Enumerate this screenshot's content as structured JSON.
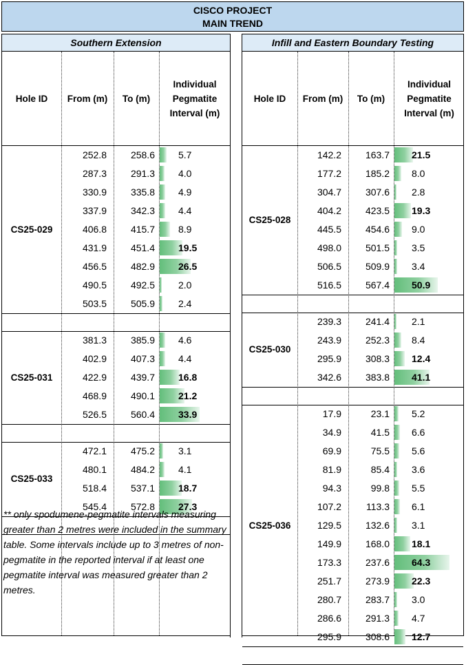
{
  "title": {
    "line1": "CISCO PROJECT",
    "line2": "MAIN TREND"
  },
  "headers": {
    "hole_id": "Hole ID",
    "from": "From (m)",
    "to": "To (m)",
    "interval": "Individual\nPegmatite\nInterval (m)"
  },
  "left": {
    "section_title": "Southern Extension",
    "groups": [
      {
        "hole": "CS25-029",
        "rows": [
          {
            "from": "252.8",
            "to": "258.6",
            "interval": "5.7",
            "value": 5.7,
            "bold": false
          },
          {
            "from": "287.3",
            "to": "291.3",
            "interval": "4.0",
            "value": 4.0,
            "bold": false
          },
          {
            "from": "330.9",
            "to": "335.8",
            "interval": "4.9",
            "value": 4.9,
            "bold": false
          },
          {
            "from": "337.9",
            "to": "342.3",
            "interval": "4.4",
            "value": 4.4,
            "bold": false
          },
          {
            "from": "406.8",
            "to": "415.7",
            "interval": "8.9",
            "value": 8.9,
            "bold": false
          },
          {
            "from": "431.9",
            "to": "451.4",
            "interval": "19.5",
            "value": 19.5,
            "bold": true
          },
          {
            "from": "456.5",
            "to": "482.9",
            "interval": "26.5",
            "value": 26.5,
            "bold": true
          },
          {
            "from": "490.5",
            "to": "492.5",
            "interval": "2.0",
            "value": 2.0,
            "bold": false
          },
          {
            "from": "503.5",
            "to": "505.9",
            "interval": "2.4",
            "value": 2.4,
            "bold": false
          }
        ]
      },
      {
        "hole": "CS25-031",
        "rows": [
          {
            "from": "381.3",
            "to": "385.9",
            "interval": "4.6",
            "value": 4.6,
            "bold": false
          },
          {
            "from": "402.9",
            "to": "407.3",
            "interval": "4.4",
            "value": 4.4,
            "bold": false
          },
          {
            "from": "422.9",
            "to": "439.7",
            "interval": "16.8",
            "value": 16.8,
            "bold": true
          },
          {
            "from": "468.9",
            "to": "490.1",
            "interval": "21.2",
            "value": 21.2,
            "bold": true
          },
          {
            "from": "526.5",
            "to": "560.4",
            "interval": "33.9",
            "value": 33.9,
            "bold": true
          }
        ]
      },
      {
        "hole": "CS25-033",
        "rows": [
          {
            "from": "472.1",
            "to": "475.2",
            "interval": "3.1",
            "value": 3.1,
            "bold": false
          },
          {
            "from": "480.1",
            "to": "484.2",
            "interval": "4.1",
            "value": 4.1,
            "bold": false
          },
          {
            "from": "518.4",
            "to": "537.1",
            "interval": "18.7",
            "value": 18.7,
            "bold": true
          },
          {
            "from": "545.4",
            "to": "572.8",
            "interval": "27.3",
            "value": 27.3,
            "bold": true
          }
        ]
      }
    ],
    "note": "** only spodumene-pegmatite intervals measuring greater than 2 metres were included in the summary table.  Some intervals include up to 3 metres of non-pegmatite in the reported interval if at least one pegmatite interval was measured greater than 2 metres."
  },
  "right": {
    "section_title": "Infill and Eastern Boundary Testing",
    "groups": [
      {
        "hole": "CS25-028",
        "rows": [
          {
            "from": "142.2",
            "to": "163.7",
            "interval": "21.5",
            "value": 21.5,
            "bold": true
          },
          {
            "from": "177.2",
            "to": "185.2",
            "interval": "8.0",
            "value": 8.0,
            "bold": false
          },
          {
            "from": "304.7",
            "to": "307.6",
            "interval": "2.8",
            "value": 2.8,
            "bold": false
          },
          {
            "from": "404.2",
            "to": "423.5",
            "interval": "19.3",
            "value": 19.3,
            "bold": true
          },
          {
            "from": "445.5",
            "to": "454.6",
            "interval": "9.0",
            "value": 9.0,
            "bold": false
          },
          {
            "from": "498.0",
            "to": "501.5",
            "interval": "3.5",
            "value": 3.5,
            "bold": false
          },
          {
            "from": "506.5",
            "to": "509.9",
            "interval": "3.4",
            "value": 3.4,
            "bold": false
          },
          {
            "from": "516.5",
            "to": "567.4",
            "interval": "50.9",
            "value": 50.9,
            "bold": true
          }
        ]
      },
      {
        "hole": "CS25-030",
        "rows": [
          {
            "from": "239.3",
            "to": "241.4",
            "interval": "2.1",
            "value": 2.1,
            "bold": false
          },
          {
            "from": "243.9",
            "to": "252.3",
            "interval": "8.4",
            "value": 8.4,
            "bold": false
          },
          {
            "from": "295.9",
            "to": "308.3",
            "interval": "12.4",
            "value": 12.4,
            "bold": true
          },
          {
            "from": "342.6",
            "to": "383.8",
            "interval": "41.1",
            "value": 41.1,
            "bold": true
          }
        ]
      },
      {
        "hole": "CS25-036",
        "rows": [
          {
            "from": "17.9",
            "to": "23.1",
            "interval": "5.2",
            "value": 5.2,
            "bold": false
          },
          {
            "from": "34.9",
            "to": "41.5",
            "interval": "6.6",
            "value": 6.6,
            "bold": false
          },
          {
            "from": "69.9",
            "to": "75.5",
            "interval": "5.6",
            "value": 5.6,
            "bold": false
          },
          {
            "from": "81.9",
            "to": "85.4",
            "interval": "3.6",
            "value": 3.6,
            "bold": false
          },
          {
            "from": "94.3",
            "to": "99.8",
            "interval": "5.5",
            "value": 5.5,
            "bold": false
          },
          {
            "from": "107.2",
            "to": "113.3",
            "interval": "6.1",
            "value": 6.1,
            "bold": false
          },
          {
            "from": "129.5",
            "to": "132.6",
            "interval": "3.1",
            "value": 3.1,
            "bold": false
          },
          {
            "from": "149.9",
            "to": "168.0",
            "interval": "18.1",
            "value": 18.1,
            "bold": true
          },
          {
            "from": "173.3",
            "to": "237.6",
            "interval": "64.3",
            "value": 64.3,
            "bold": true
          },
          {
            "from": "251.7",
            "to": "273.9",
            "interval": "22.3",
            "value": 22.3,
            "bold": true
          },
          {
            "from": "280.7",
            "to": "283.7",
            "interval": "3.0",
            "value": 3.0,
            "bold": false
          },
          {
            "from": "286.6",
            "to": "291.3",
            "interval": "4.7",
            "value": 4.7,
            "bold": false
          },
          {
            "from": "295.9",
            "to": "308.6",
            "interval": "12.7",
            "value": 12.7,
            "bold": true
          }
        ]
      }
    ]
  },
  "colors": {
    "title_bg": "#bdd7ee",
    "section_bg": "#ddebf7",
    "bar": "#63be7b"
  }
}
